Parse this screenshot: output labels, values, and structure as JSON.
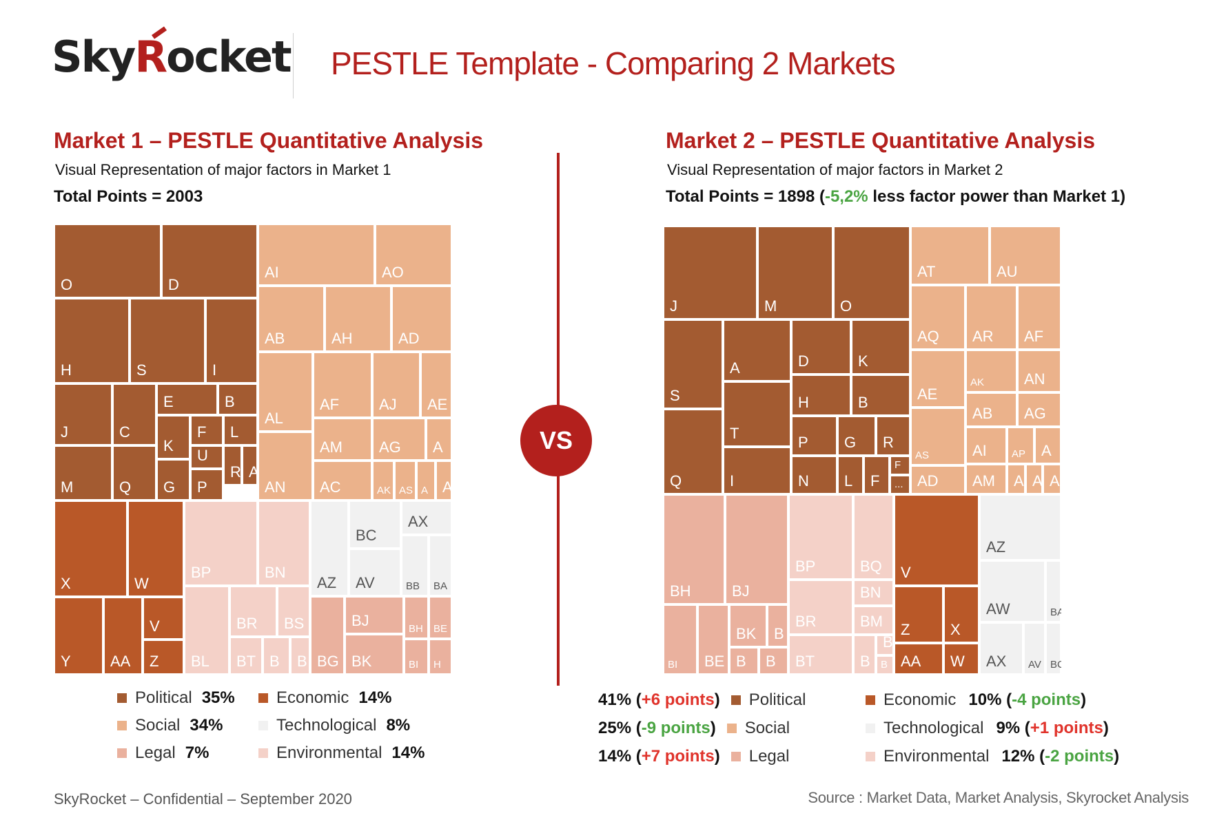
{
  "header": {
    "logo_part1": "Sky",
    "logo_part2": "R",
    "logo_part3": "ocket",
    "title": "PESTLE Template - Comparing 2 Markets"
  },
  "vs_label": "VS",
  "colors": {
    "Political": "#a35b31",
    "Economic": "#b95828",
    "Social": "#ebb28b",
    "Technological": "#f1f1f1",
    "Legal": "#eab19e",
    "Environmental": "#f4d1c8",
    "brand": "#b3201d"
  },
  "market1": {
    "title": "Market 1 – PESTLE Quantitative Analysis",
    "subtitle": "Visual Representation of major factors in Market 1",
    "total": "Total Points = 2003",
    "legend": [
      {
        "category": "Political",
        "label": "Political",
        "pct": "35%"
      },
      {
        "category": "Economic",
        "label": "Economic",
        "pct": "14%"
      },
      {
        "category": "Social",
        "label": "Social",
        "pct": "34%"
      },
      {
        "category": "Technological",
        "label": "Technological",
        "pct": "8%"
      },
      {
        "category": "Legal",
        "label": "Legal",
        "pct": "7%"
      },
      {
        "category": "Environmental",
        "label": "Environmental",
        "pct": "14%"
      }
    ]
  },
  "market2": {
    "title": "Market 2 – PESTLE Quantitative Analysis",
    "subtitle": "Visual Representation of major factors in Market 2",
    "total_prefix": "Total Points = 1898 (",
    "total_delta": "-5,2%",
    "total_suffix": " less factor power than Market 1)",
    "legend": [
      {
        "category": "Political",
        "label": "Political",
        "pct": "41%",
        "delta": "+6 points",
        "delta_color": "red"
      },
      {
        "category": "Economic",
        "label": "Economic",
        "pct": "10%",
        "delta": "-4 points",
        "delta_color": "green"
      },
      {
        "category": "Social",
        "label": "Social",
        "pct": "25%",
        "delta": "-9 points",
        "delta_color": "green"
      },
      {
        "category": "Technological",
        "label": "Technological",
        "pct": "9%",
        "delta": "+1 points",
        "delta_color": "red"
      },
      {
        "category": "Legal",
        "label": "Legal",
        "pct": "14%",
        "delta": "+7 points",
        "delta_color": "red"
      },
      {
        "category": "Environmental",
        "label": "Environmental",
        "pct": "12%",
        "delta": "-2 points",
        "delta_color": "green"
      }
    ]
  },
  "chart_data": [
    {
      "type": "treemap",
      "title": "Market 1 – PESTLE Quantitative Analysis",
      "total_points": 2003,
      "categories": [
        {
          "name": "Political",
          "share_pct": 35,
          "factors": [
            "O",
            "D",
            "H",
            "S",
            "I",
            "J",
            "C",
            "E",
            "B",
            "K",
            "F",
            "L",
            "U",
            "R",
            "A",
            "M",
            "Q",
            "G",
            "P"
          ]
        },
        {
          "name": "Social",
          "share_pct": 34,
          "factors": [
            "AI",
            "AO",
            "AB",
            "AH",
            "AD",
            "AL",
            "AF",
            "AJ",
            "AE",
            "AM",
            "AG",
            "A",
            "AN",
            "AC",
            "AK",
            "AS",
            "A",
            "A"
          ]
        },
        {
          "name": "Economic",
          "share_pct": 14,
          "factors": [
            "X",
            "W",
            "Y",
            "AA",
            "V",
            "Z"
          ]
        },
        {
          "name": "Environmental",
          "share_pct": 14,
          "factors": [
            "BP",
            "BN",
            "BL",
            "BR",
            "BS",
            "BT",
            "B",
            "B"
          ]
        },
        {
          "name": "Technological",
          "share_pct": 8,
          "factors": [
            "AZ",
            "BC",
            "AV",
            "AX",
            "BB",
            "BA"
          ]
        },
        {
          "name": "Legal",
          "share_pct": 7,
          "factors": [
            "BG",
            "BJ",
            "BK",
            "BH",
            "BE",
            "BI",
            "H"
          ]
        }
      ]
    },
    {
      "type": "treemap",
      "title": "Market 2 – PESTLE Quantitative Analysis",
      "total_points": 1898,
      "categories": [
        {
          "name": "Political",
          "share_pct": 41,
          "factors": [
            "J",
            "M",
            "O",
            "S",
            "A",
            "D",
            "K",
            "H",
            "B",
            "T",
            "P",
            "G",
            "R",
            "Q",
            "I",
            "N",
            "L",
            "F",
            "F",
            "..."
          ]
        },
        {
          "name": "Social",
          "share_pct": 25,
          "factors": [
            "AT",
            "AU",
            "AQ",
            "AR",
            "AF",
            "AE",
            "AK",
            "AN",
            "AB",
            "AG",
            "AS",
            "AI",
            "AP",
            "A",
            "AD",
            "AM",
            "A",
            "A",
            "A"
          ]
        },
        {
          "name": "Legal",
          "share_pct": 14,
          "factors": [
            "BH",
            "BJ",
            "BI",
            "BE",
            "BK",
            "B",
            "B",
            "B"
          ]
        },
        {
          "name": "Environmental",
          "share_pct": 12,
          "factors": [
            "BP",
            "BQ",
            "BN",
            "BR",
            "BM",
            "BT",
            "B",
            "B",
            "B"
          ]
        },
        {
          "name": "Economic",
          "share_pct": 10,
          "factors": [
            "V",
            "Z",
            "X",
            "AA",
            "W"
          ]
        },
        {
          "name": "Technological",
          "share_pct": 9,
          "factors": [
            "AZ",
            "AW",
            "BA",
            "AX",
            "AV",
            "BC",
            "B"
          ]
        }
      ]
    }
  ],
  "footer": {
    "left": "SkyRocket – Confidential – September 2020",
    "right": "Source : Market Data, Market Analysis, Skyrocket Analysis"
  }
}
